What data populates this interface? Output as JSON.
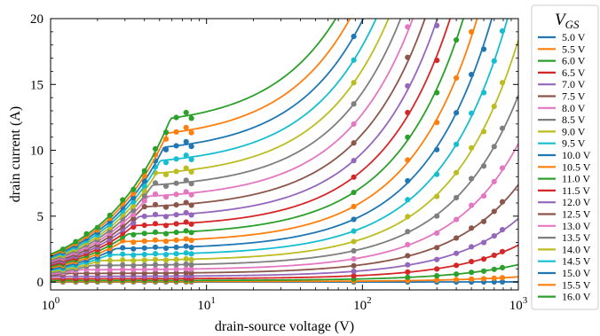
{
  "chart_data": {
    "type": "line",
    "title": "",
    "xlabel": "drain-source voltage (V)",
    "ylabel": "drain current (A)",
    "xscale": "log",
    "xlim": [
      1,
      1000
    ],
    "ylim": [
      -0.6,
      20
    ],
    "x_ticks": [
      1,
      10,
      100,
      1000
    ],
    "x_tick_labels": [
      {
        "base": "10",
        "exp": "0"
      },
      {
        "base": "10",
        "exp": "1"
      },
      {
        "base": "10",
        "exp": "2"
      },
      {
        "base": "10",
        "exp": "3"
      }
    ],
    "y_ticks": [
      "0",
      "5",
      "10",
      "15",
      "20"
    ],
    "grid": false,
    "legend_title": {
      "base": "V",
      "sub": "GS"
    },
    "legend_position": "outside-right",
    "colors": [
      "#1f77b4",
      "#ff7f0e",
      "#2ca02c",
      "#d62728",
      "#9467bd",
      "#8c564b",
      "#e377c2",
      "#7f7f7f",
      "#bcbd22",
      "#17becf"
    ],
    "vgs_values": [
      5.0,
      5.5,
      6.0,
      6.5,
      7.0,
      7.5,
      8.0,
      8.5,
      9.0,
      9.5,
      10.0,
      10.5,
      11.0,
      11.5,
      12.0,
      12.5,
      13.0,
      13.5,
      14.0,
      14.5,
      15.0,
      15.5,
      16.0
    ],
    "series": [
      {
        "name": "5.0 V"
      },
      {
        "name": "5.5 V"
      },
      {
        "name": "6.0 V"
      },
      {
        "name": "6.5 V"
      },
      {
        "name": "7.0 V"
      },
      {
        "name": "7.5 V"
      },
      {
        "name": "8.0 V"
      },
      {
        "name": "8.5 V"
      },
      {
        "name": "9.0 V"
      },
      {
        "name": "9.5 V"
      },
      {
        "name": "10.0 V"
      },
      {
        "name": "10.5 V"
      },
      {
        "name": "11.0 V"
      },
      {
        "name": "11.5 V"
      },
      {
        "name": "12.0 V"
      },
      {
        "name": "12.5 V"
      },
      {
        "name": "13.0 V"
      },
      {
        "name": "13.5 V"
      },
      {
        "name": "14.0 V"
      },
      {
        "name": "14.5 V"
      },
      {
        "name": "15.0 V"
      },
      {
        "name": "15.5 V"
      },
      {
        "name": "16.0 V"
      }
    ],
    "measurement_vds_low": [
      1.2,
      1.45,
      1.7,
      2.0,
      2.4,
      2.9,
      3.4,
      4.0,
      4.7,
      5.5,
      6.4,
      7.4,
      8.0
    ],
    "measurement_vds_high": [
      88,
      195,
      300,
      400,
      500,
      600,
      700,
      790
    ]
  }
}
